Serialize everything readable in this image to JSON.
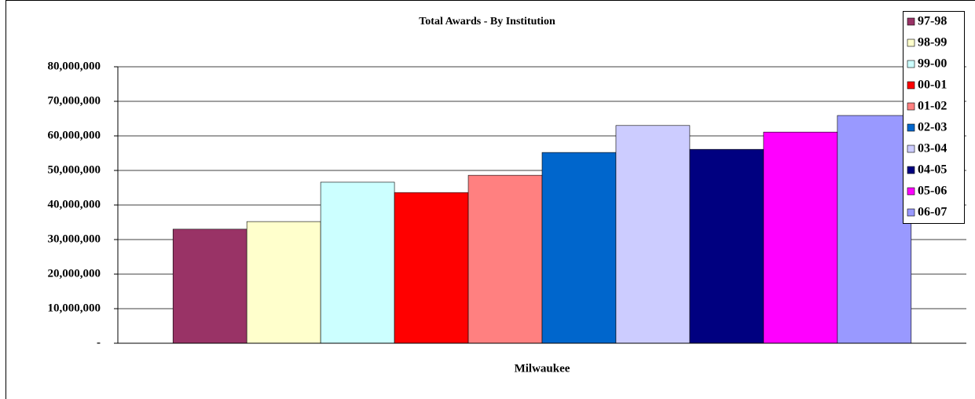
{
  "chart_data": {
    "type": "bar",
    "title": "Total Awards  - By Institution",
    "categories": [
      "Milwaukee"
    ],
    "series": [
      {
        "name": "97-98",
        "color": "#993366",
        "values": [
          33000000
        ]
      },
      {
        "name": "98-99",
        "color": "#ffffcc",
        "values": [
          35200000
        ]
      },
      {
        "name": "99-00",
        "color": "#ccffff",
        "values": [
          46600000
        ]
      },
      {
        "name": "00-01",
        "color": "#ff0000",
        "values": [
          43600000
        ]
      },
      {
        "name": "01-02",
        "color": "#ff8080",
        "values": [
          48600000
        ]
      },
      {
        "name": "02-03",
        "color": "#0066cc",
        "values": [
          55200000
        ]
      },
      {
        "name": "03-04",
        "color": "#ccccff",
        "values": [
          63000000
        ]
      },
      {
        "name": "04-05",
        "color": "#000080",
        "values": [
          56100000
        ]
      },
      {
        "name": "05-06",
        "color": "#ff00ff",
        "values": [
          61100000
        ]
      },
      {
        "name": "06-07",
        "color": "#9999ff",
        "values": [
          65900000
        ]
      }
    ],
    "ylim": [
      0,
      80000000
    ],
    "yticks": [
      {
        "value": 0,
        "label": "-"
      },
      {
        "value": 10000000,
        "label": "10,000,000"
      },
      {
        "value": 20000000,
        "label": "20,000,000"
      },
      {
        "value": 30000000,
        "label": "30,000,000"
      },
      {
        "value": 40000000,
        "label": "40,000,000"
      },
      {
        "value": 50000000,
        "label": "50,000,000"
      },
      {
        "value": 60000000,
        "label": "60,000,000"
      },
      {
        "value": 70000000,
        "label": "70,000,000"
      },
      {
        "value": 80000000,
        "label": "80,000,000"
      }
    ],
    "grid": true,
    "legend": "right"
  }
}
